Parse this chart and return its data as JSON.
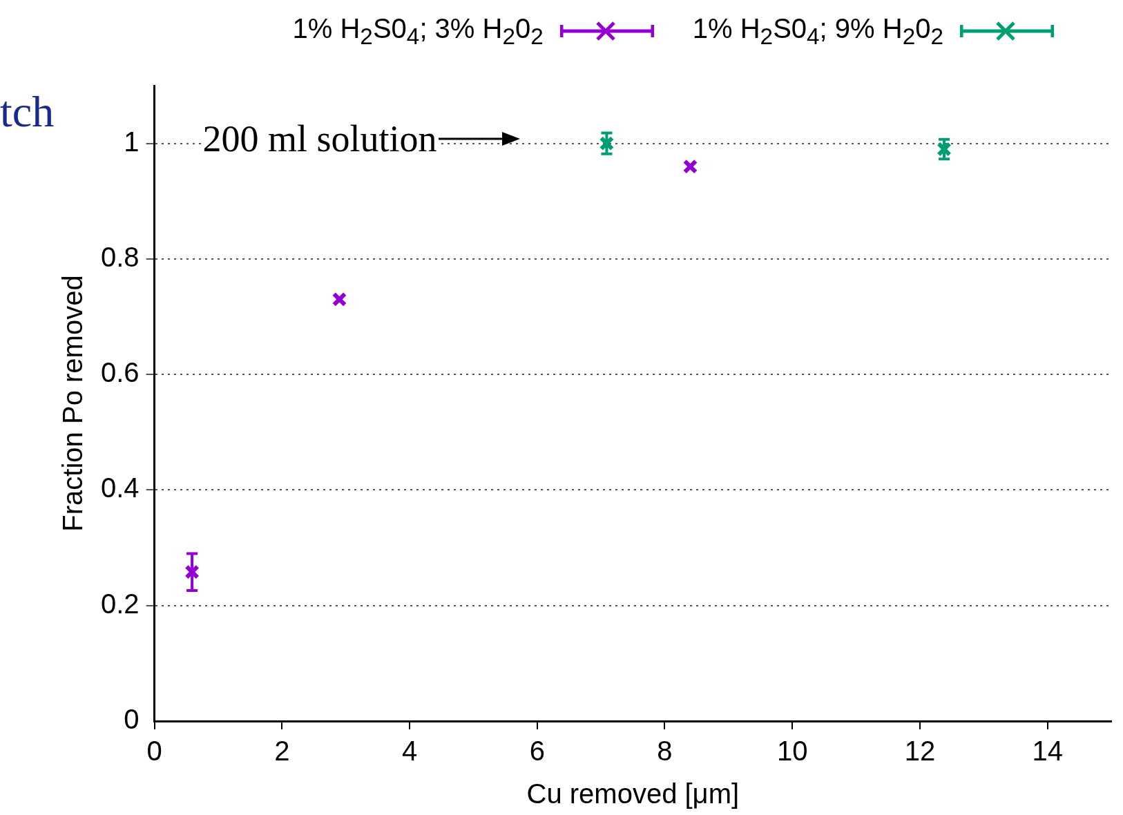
{
  "chart_data": {
    "type": "scatter",
    "xlabel": "Cu removed [μm]",
    "ylabel": "Fraction Po removed",
    "xlim": [
      0,
      15
    ],
    "xticks": [
      0,
      2,
      4,
      6,
      8,
      10,
      12,
      14
    ],
    "ylim": [
      0,
      1.1
    ],
    "yticks": [
      0,
      0.2,
      0.4,
      0.6,
      0.8,
      1
    ],
    "grid": "y",
    "legend": "top",
    "marker": "cross",
    "series": [
      {
        "name": "1% H$_{2}$S0$_{4}$; 3% H$_{2}$0$_{2}$",
        "color": "#9400d3",
        "x": [
          0.59,
          2.9,
          8.4
        ],
        "values": [
          0.258,
          0.73,
          0.96
        ],
        "errors": [
          0.032,
          null,
          null
        ]
      },
      {
        "name": "1% H$_{2}$S0$_{4}$; 9% H$_{2}$0$_{2}$",
        "color": "#009e73",
        "x": [
          7.09,
          12.38
        ],
        "values": [
          1.0,
          0.99
        ],
        "errors": [
          0.018,
          0.017
        ]
      }
    ],
    "annotations": [
      "tch",
      "200 ml solution"
    ]
  }
}
